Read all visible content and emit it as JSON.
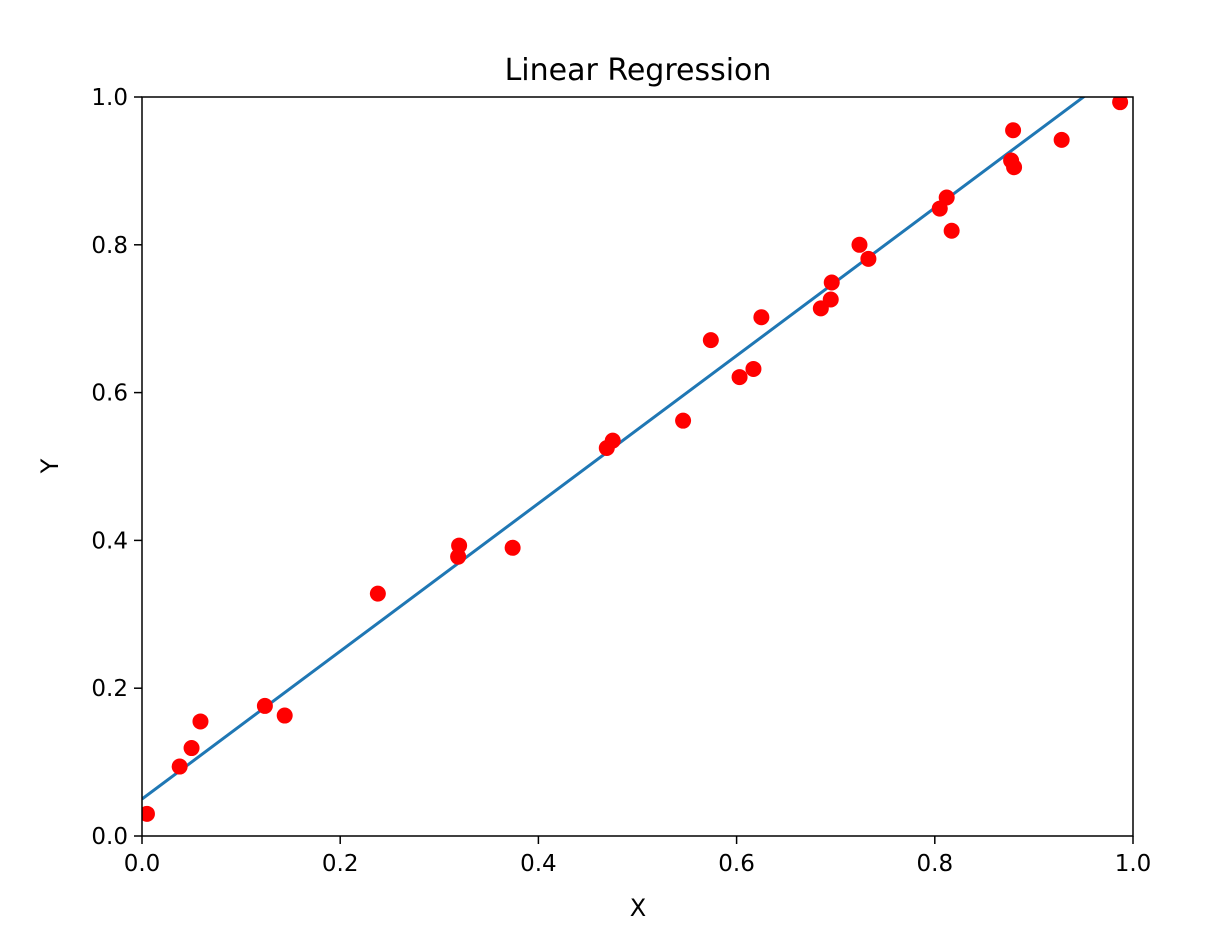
{
  "chart_data": {
    "type": "scatter",
    "title": "Linear Regression",
    "xlabel": "X",
    "ylabel": "Y",
    "xlim": [
      0.0,
      1.0
    ],
    "ylim": [
      0.0,
      1.0
    ],
    "xticks": [
      "0.0",
      "0.2",
      "0.4",
      "0.6",
      "0.8",
      "1.0"
    ],
    "yticks": [
      "0.0",
      "0.2",
      "0.4",
      "0.6",
      "0.8",
      "1.0"
    ],
    "grid": false,
    "colors": {
      "points": "#ff0000",
      "line": "#1f77b4",
      "axes": "#000000"
    },
    "series": [
      {
        "type": "scatter",
        "points": [
          [
            0.005,
            0.03
          ],
          [
            0.038,
            0.094
          ],
          [
            0.05,
            0.119
          ],
          [
            0.059,
            0.155
          ],
          [
            0.124,
            0.176
          ],
          [
            0.144,
            0.163
          ],
          [
            0.238,
            0.328
          ],
          [
            0.319,
            0.378
          ],
          [
            0.32,
            0.393
          ],
          [
            0.374,
            0.39
          ],
          [
            0.469,
            0.525
          ],
          [
            0.475,
            0.535
          ],
          [
            0.546,
            0.562
          ],
          [
            0.574,
            0.671
          ],
          [
            0.603,
            0.621
          ],
          [
            0.617,
            0.632
          ],
          [
            0.625,
            0.702
          ],
          [
            0.685,
            0.714
          ],
          [
            0.695,
            0.726
          ],
          [
            0.696,
            0.749
          ],
          [
            0.724,
            0.8
          ],
          [
            0.733,
            0.781
          ],
          [
            0.805,
            0.849
          ],
          [
            0.812,
            0.864
          ],
          [
            0.817,
            0.819
          ],
          [
            0.877,
            0.914
          ],
          [
            0.879,
            0.955
          ],
          [
            0.88,
            0.905
          ],
          [
            0.928,
            0.942
          ],
          [
            0.987,
            0.993
          ]
        ]
      },
      {
        "type": "line",
        "intercept": 0.05,
        "slope": 1.0
      }
    ]
  }
}
